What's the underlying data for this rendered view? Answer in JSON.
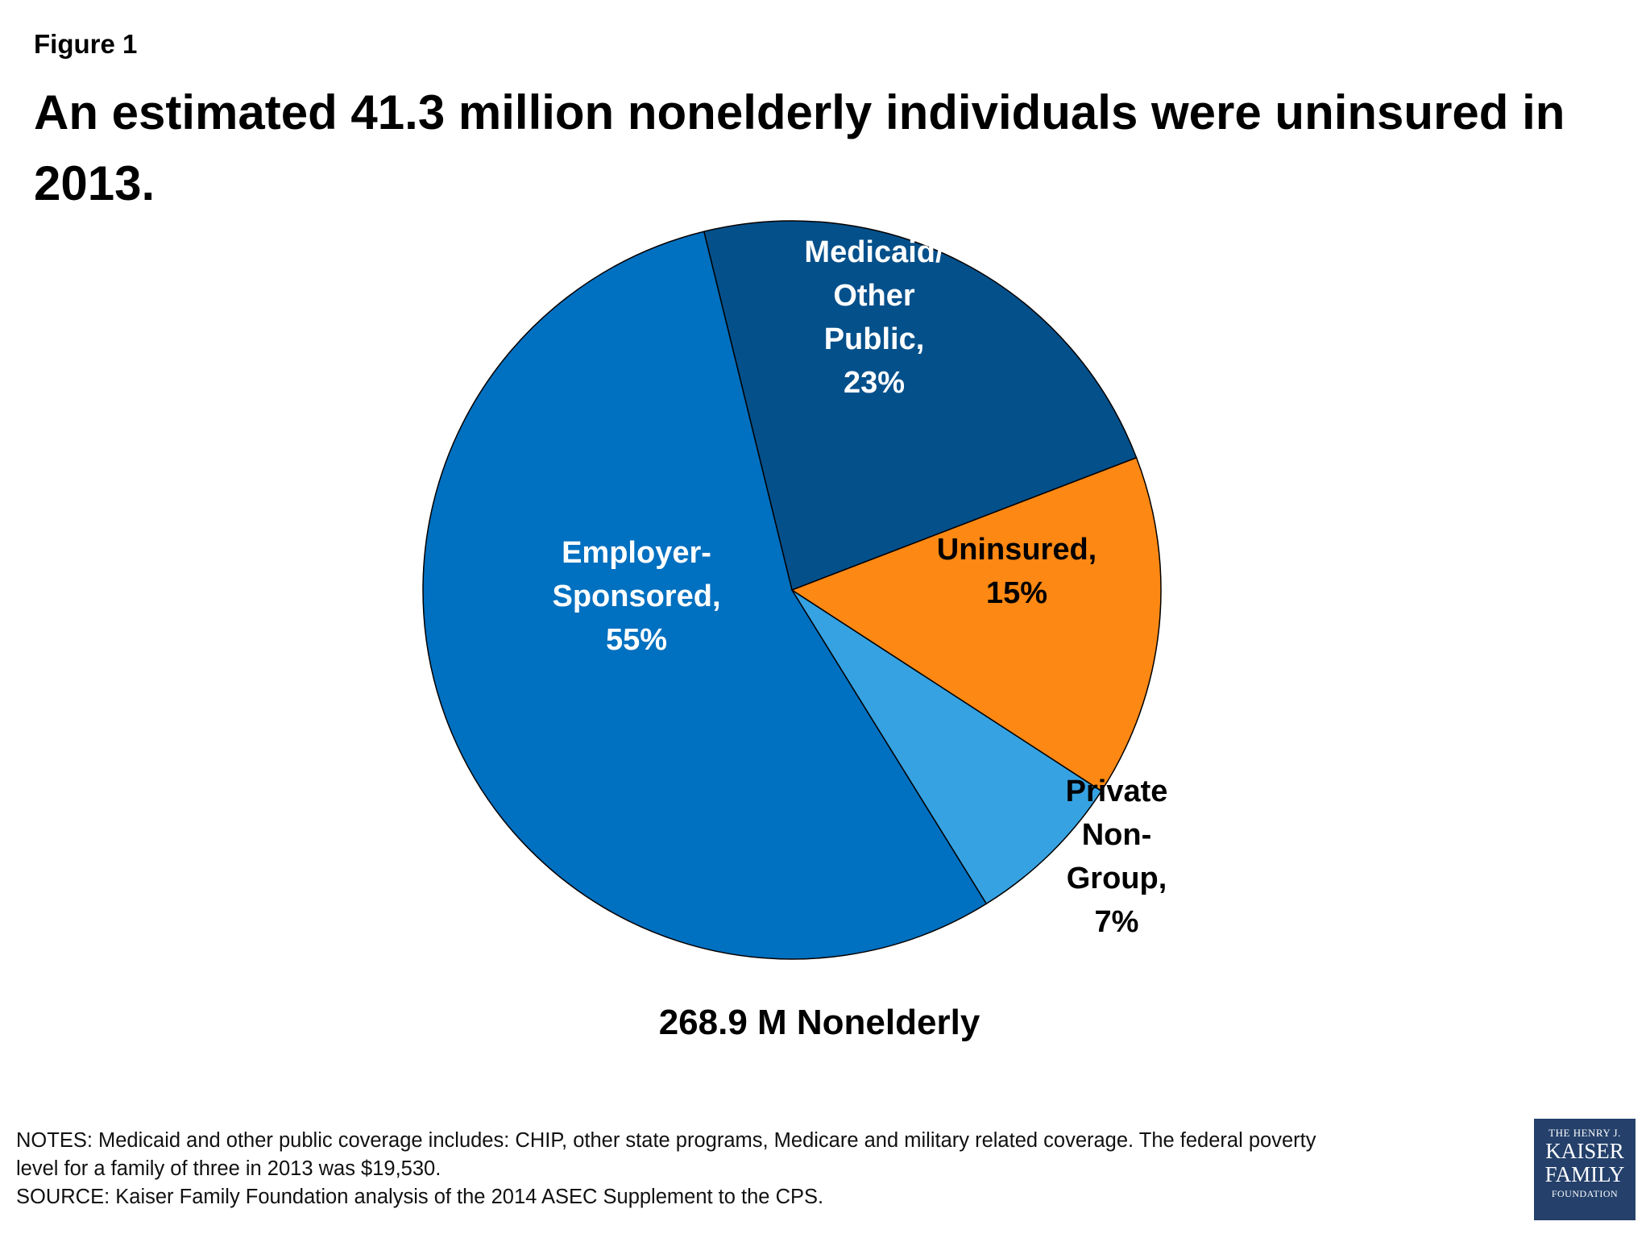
{
  "figure_label": "Figure 1",
  "title": "An estimated 41.3 million nonelderly individuals were uninsured in 2013.",
  "chart_data": {
    "type": "pie",
    "title": "An estimated 41.3 million nonelderly individuals were uninsured in 2013.",
    "total_label": "268.9 M Nonelderly",
    "start_angle_deg": -21,
    "direction": "counterclockwise",
    "slices": [
      {
        "name": "Medicaid/ Other Public",
        "value": 23,
        "label_lines": [
          "Medicaid/",
          "Other",
          "Public,",
          "23%"
        ],
        "color": "#04508b",
        "label_color": "#ffffff"
      },
      {
        "name": "Employer-Sponsored",
        "value": 55,
        "label_lines": [
          "Employer-",
          "Sponsored,",
          "55%"
        ],
        "color": "#0070c0",
        "label_color": "#ffffff"
      },
      {
        "name": "Private Non-Group",
        "value": 7,
        "label_lines": [
          "Private",
          "Non-",
          "Group,",
          "7%"
        ],
        "color": "#36a2e1",
        "label_color": "#000000"
      },
      {
        "name": "Uninsured",
        "value": 15,
        "label_lines": [
          "Uninsured,",
          "15%"
        ],
        "color": "#fd8813",
        "label_color": "#000000"
      }
    ]
  },
  "notes": {
    "line1": "NOTES: Medicaid and other public coverage includes: CHIP, other state programs, Medicare and military related coverage.  The federal poverty",
    "line2": "level for a family of three in 2013 was $19,530.",
    "line3": "SOURCE: Kaiser Family Foundation analysis of the 2014 ASEC Supplement to the CPS."
  },
  "logo": {
    "line1": "THE HENRY J.",
    "line2": "KAISER",
    "line3": "FAMILY",
    "line4": "FOUNDATION"
  }
}
